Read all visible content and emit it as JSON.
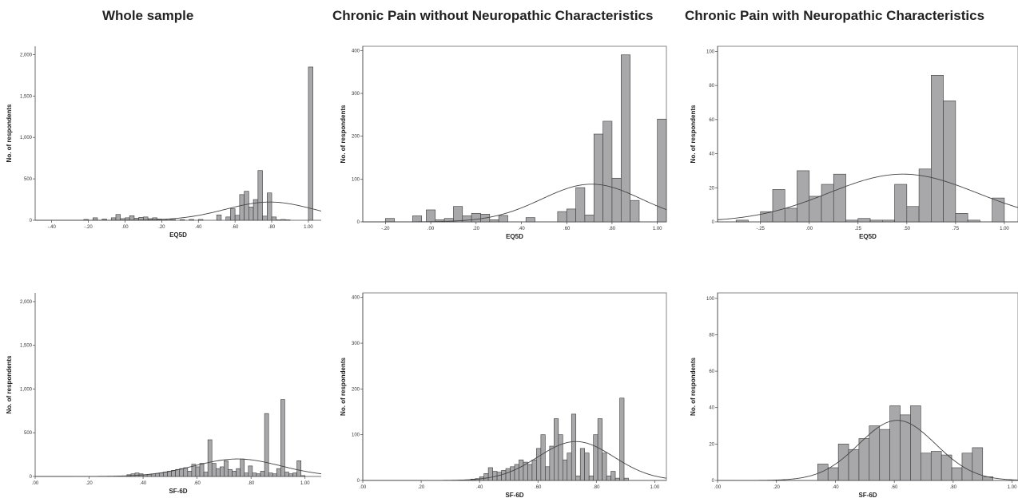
{
  "titles": [
    "Whole sample",
    "Chronic Pain without Neuropathic Characteristics",
    "Chronic Pain with Neuropathic Characteristics"
  ],
  "style": {
    "bar_fill": "#a8a8aa",
    "bar_stroke": "#3a3a3a",
    "curve": "#444444"
  },
  "chart_data": [
    {
      "id": "whole-eq5d",
      "type": "bar",
      "xlabel": "EQ5D",
      "ylabel": "No. of respondents",
      "xlim": [
        -0.49,
        1.07
      ],
      "ylim": [
        0,
        2100
      ],
      "xticks": [
        -0.4,
        -0.2,
        0.0,
        0.2,
        0.4,
        0.6,
        0.8,
        1.0
      ],
      "xticklabels": [
        "-.40",
        "-.20",
        ".00",
        ".20",
        ".40",
        ".60",
        ".80",
        "1.00"
      ],
      "yticks": [
        0,
        500,
        1000,
        1500,
        2000
      ],
      "yticklabels": [
        "0",
        "500",
        "1,000",
        "1,500",
        "2,000"
      ],
      "bin_width": 0.025,
      "bins": [
        -0.225,
        -0.175,
        -0.125,
        -0.075,
        -0.05,
        -0.025,
        0.0,
        0.025,
        0.05,
        0.075,
        0.1,
        0.125,
        0.15,
        0.175,
        0.2,
        0.225,
        0.25,
        0.3,
        0.35,
        0.4,
        0.5,
        0.55,
        0.575,
        0.6,
        0.625,
        0.65,
        0.675,
        0.7,
        0.725,
        0.75,
        0.775,
        0.8,
        0.825,
        0.85,
        0.875,
        1.0
      ],
      "counts": [
        10,
        30,
        15,
        30,
        70,
        20,
        30,
        55,
        25,
        35,
        40,
        20,
        30,
        15,
        10,
        15,
        10,
        8,
        10,
        10,
        65,
        40,
        140,
        60,
        310,
        350,
        160,
        250,
        600,
        50,
        330,
        40,
        5,
        10,
        5,
        1850
      ],
      "normal_curve": {
        "mean": 0.79,
        "sd": 0.24,
        "peak": 220
      }
    },
    {
      "id": "nonneuro-eq5d",
      "type": "bar",
      "xlabel": "EQ5D",
      "ylabel": "No. of respondents",
      "xlim": [
        -0.3,
        1.04
      ],
      "ylim": [
        0,
        410
      ],
      "xticks": [
        -0.2,
        0.0,
        0.2,
        0.4,
        0.6,
        0.8,
        1.0
      ],
      "xticklabels": [
        "-.20",
        ".00",
        ".20",
        ".40",
        ".60",
        ".80",
        "1.00"
      ],
      "yticks": [
        0,
        100,
        200,
        300,
        400
      ],
      "yticklabels": [
        "0",
        "100",
        "200",
        "300",
        "400"
      ],
      "bin_width": 0.04,
      "bins": [
        -0.2,
        -0.08,
        -0.02,
        0.02,
        0.06,
        0.1,
        0.14,
        0.18,
        0.22,
        0.26,
        0.3,
        0.42,
        0.5,
        0.56,
        0.6,
        0.64,
        0.68,
        0.72,
        0.76,
        0.8,
        0.84,
        0.88,
        1.0
      ],
      "counts": [
        8,
        14,
        28,
        5,
        8,
        36,
        14,
        20,
        18,
        5,
        15,
        10,
        0,
        24,
        30,
        80,
        16,
        205,
        235,
        102,
        390,
        50,
        240
      ],
      "normal_curve": {
        "mean": 0.71,
        "sd": 0.22,
        "peak": 88
      }
    },
    {
      "id": "neuro-eq5d",
      "type": "bar",
      "xlabel": "EQ5D",
      "ylabel": "No. of respondents",
      "xlim": [
        -0.47,
        1.07
      ],
      "ylim": [
        0,
        103
      ],
      "xticks": [
        -0.25,
        0.0,
        0.25,
        0.5,
        0.75,
        1.0
      ],
      "xticklabels": [
        "-.25",
        ".00",
        ".25",
        ".50",
        ".75",
        "1.00"
      ],
      "yticks": [
        0,
        20,
        40,
        60,
        80,
        100
      ],
      "yticklabels": [
        "0",
        "20",
        "40",
        "60",
        "80",
        "100"
      ],
      "bin_width": 0.0625,
      "bins": [
        -0.375,
        -0.25,
        -0.1875,
        -0.125,
        -0.0625,
        0.0,
        0.0625,
        0.125,
        0.1875,
        0.25,
        0.3125,
        0.375,
        0.4375,
        0.5,
        0.5625,
        0.625,
        0.6875,
        0.75,
        0.8125,
        0.875,
        0.9375
      ],
      "counts": [
        1,
        6,
        19,
        8,
        30,
        15,
        22,
        28,
        1,
        2,
        1,
        1,
        22,
        9,
        31,
        86,
        71,
        5,
        1,
        0,
        14
      ],
      "normal_curve": {
        "mean": 0.48,
        "sd": 0.38,
        "peak": 28
      }
    },
    {
      "id": "whole-sf6d",
      "type": "bar",
      "xlabel": "SF-6D",
      "ylabel": "No. of respondents",
      "xlim": [
        0.0,
        1.06
      ],
      "ylim": [
        0,
        2100
      ],
      "xticks": [
        0.0,
        0.2,
        0.4,
        0.6,
        0.8,
        1.0
      ],
      "xticklabels": [
        ".00",
        ".20",
        ".40",
        ".60",
        ".80",
        "1.00"
      ],
      "yticks": [
        0,
        500,
        1000,
        1500,
        2000
      ],
      "yticklabels": [
        "0",
        "500",
        "1,000",
        "1,500",
        "2,000"
      ],
      "bin_width": 0.015,
      "bins": [
        0.34,
        0.355,
        0.37,
        0.385,
        0.4,
        0.415,
        0.43,
        0.445,
        0.46,
        0.475,
        0.49,
        0.505,
        0.52,
        0.535,
        0.55,
        0.565,
        0.58,
        0.595,
        0.61,
        0.625,
        0.64,
        0.655,
        0.67,
        0.685,
        0.7,
        0.715,
        0.73,
        0.745,
        0.76,
        0.775,
        0.79,
        0.805,
        0.82,
        0.835,
        0.85,
        0.865,
        0.88,
        0.895,
        0.91,
        0.925,
        0.94,
        0.955,
        0.97,
        0.985
      ],
      "counts": [
        20,
        30,
        40,
        30,
        20,
        25,
        30,
        35,
        40,
        50,
        60,
        70,
        80,
        90,
        100,
        60,
        140,
        110,
        150,
        50,
        420,
        150,
        90,
        110,
        180,
        80,
        60,
        90,
        200,
        40,
        120,
        40,
        30,
        60,
        720,
        40,
        30,
        90,
        880,
        50,
        30,
        40,
        180,
        10
      ],
      "normal_curve": {
        "mean": 0.75,
        "sd": 0.16,
        "peak": 200
      }
    },
    {
      "id": "nonneuro-sf6d",
      "type": "bar",
      "xlabel": "SF-6D",
      "ylabel": "No. of respondents",
      "xlim": [
        0.0,
        1.04
      ],
      "ylim": [
        0,
        410
      ],
      "xticks": [
        0.0,
        0.2,
        0.4,
        0.6,
        0.8,
        1.0
      ],
      "xticklabels": [
        ".00",
        ".20",
        ".40",
        ".60",
        ".80",
        "1.00"
      ],
      "yticks": [
        0,
        100,
        200,
        300,
        400
      ],
      "yticklabels": [
        "0",
        "100",
        "200",
        "300",
        "400"
      ],
      "bin_width": 0.015,
      "bins": [
        0.37,
        0.385,
        0.4,
        0.415,
        0.43,
        0.445,
        0.46,
        0.475,
        0.49,
        0.505,
        0.52,
        0.535,
        0.55,
        0.565,
        0.58,
        0.595,
        0.61,
        0.625,
        0.64,
        0.655,
        0.67,
        0.685,
        0.7,
        0.715,
        0.73,
        0.745,
        0.76,
        0.775,
        0.79,
        0.805,
        0.82,
        0.835,
        0.85,
        0.865,
        0.88,
        0.895,
        0.91,
        0.925,
        0.94
      ],
      "counts": [
        3,
        4,
        8,
        15,
        28,
        20,
        18,
        22,
        26,
        30,
        35,
        45,
        40,
        35,
        45,
        70,
        100,
        30,
        75,
        135,
        100,
        45,
        60,
        145,
        10,
        70,
        60,
        10,
        100,
        135,
        60,
        10,
        20,
        5,
        180,
        5,
        0,
        0,
        0
      ],
      "normal_curve": {
        "mean": 0.73,
        "sd": 0.13,
        "peak": 85
      }
    },
    {
      "id": "neuro-sf6d",
      "type": "bar",
      "xlabel": "SF-6D",
      "ylabel": "No. of respondents",
      "xlim": [
        0.0,
        1.02
      ],
      "ylim": [
        0,
        103
      ],
      "xticks": [
        0.0,
        0.2,
        0.4,
        0.6,
        0.8,
        1.0
      ],
      "xticklabels": [
        ".00",
        ".20",
        ".40",
        ".60",
        ".80",
        "1.00"
      ],
      "yticks": [
        0,
        20,
        40,
        60,
        80,
        100
      ],
      "yticklabels": [
        "0",
        "20",
        "40",
        "60",
        "80",
        "100"
      ],
      "bin_width": 0.035,
      "bins": [
        0.34,
        0.375,
        0.41,
        0.445,
        0.48,
        0.515,
        0.55,
        0.585,
        0.62,
        0.655,
        0.69,
        0.725,
        0.76,
        0.795,
        0.83,
        0.865,
        0.9
      ],
      "counts": [
        9,
        7,
        20,
        17,
        23,
        30,
        28,
        41,
        36,
        41,
        15,
        16,
        14,
        7,
        15,
        18,
        2
      ],
      "normal_curve": {
        "mean": 0.61,
        "sd": 0.13,
        "peak": 33
      }
    }
  ]
}
